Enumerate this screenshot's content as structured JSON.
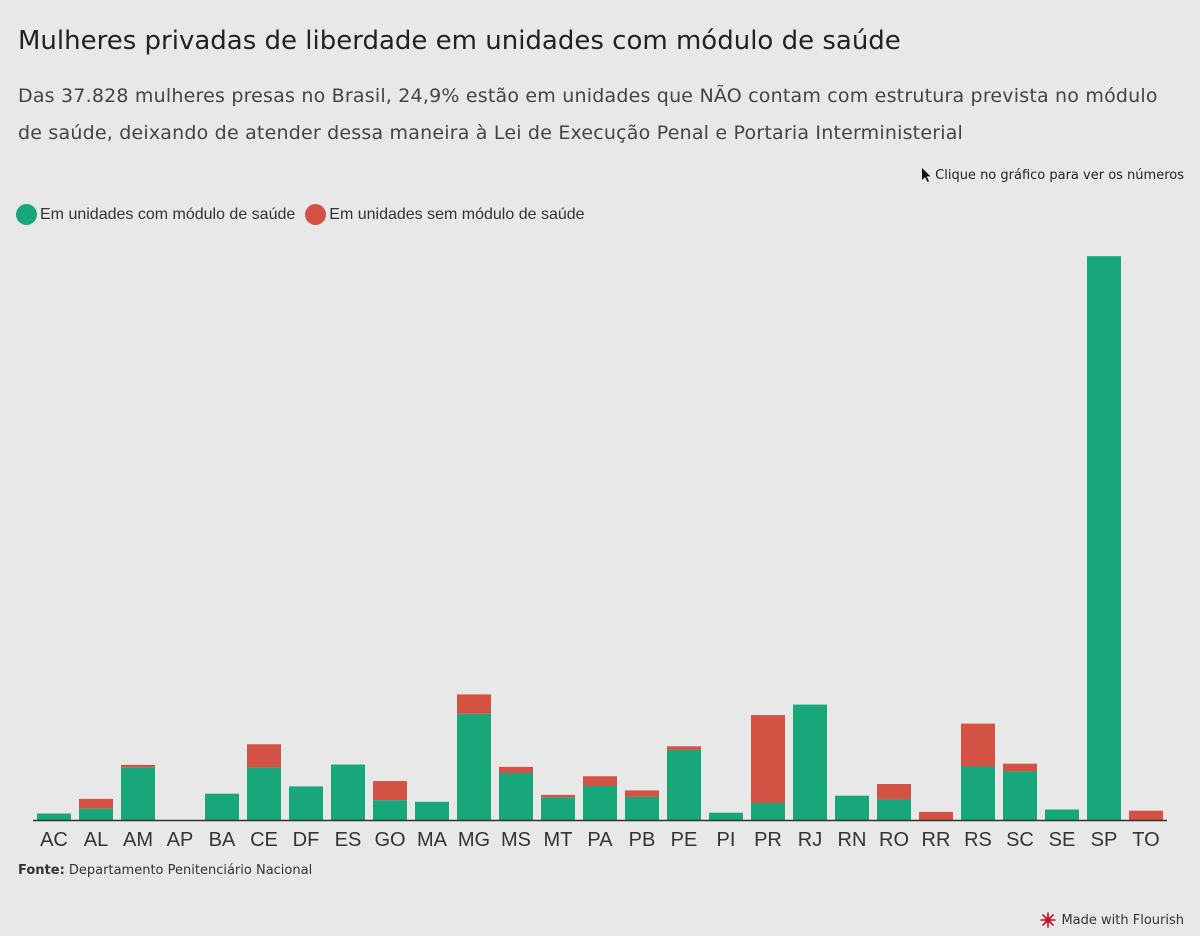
{
  "header": {
    "title": "Mulheres privadas de liberdade em unidades com módulo de saúde",
    "subtitle": "Das 37.828 mulheres presas no Brasil, 24,9% estão em unidades que NÃO contam com estrutura prevista no módulo de saúde, deixando de atender dessa maneira à Lei de Execução Penal e Portaria Interministerial"
  },
  "hint": {
    "icon": "cursor-arrow-icon",
    "text": "Clique no gráfico para ver os números"
  },
  "legend": [
    {
      "label": "Em unidades com módulo de saúde",
      "color": "#17a77b"
    },
    {
      "label": "Em unidades sem módulo de saúde",
      "color": "#d35243"
    }
  ],
  "chart_data": {
    "type": "bar",
    "stacked": true,
    "title": "Mulheres privadas de liberdade em unidades com módulo de saúde",
    "xlabel": "",
    "ylabel": "",
    "ylim": [
      0,
      14000
    ],
    "grid": false,
    "categories": [
      "AC",
      "AL",
      "AM",
      "AP",
      "BA",
      "CE",
      "DF",
      "ES",
      "GO",
      "MA",
      "MG",
      "MS",
      "MT",
      "PA",
      "PB",
      "PE",
      "PI",
      "PR",
      "RJ",
      "RN",
      "RO",
      "RR",
      "RS",
      "SC",
      "SE",
      "SP",
      "TO"
    ],
    "series": [
      {
        "name": "Em unidades com módulo de saúde",
        "color": "#17a77b",
        "values": [
          160,
          280,
          1300,
          0,
          650,
          1300,
          830,
          1370,
          490,
          450,
          2620,
          1160,
          560,
          840,
          570,
          1730,
          180,
          420,
          2850,
          600,
          510,
          0,
          1320,
          1200,
          260,
          13920,
          0
        ]
      },
      {
        "name": "Em unidades sem módulo de saúde",
        "color": "#d35243",
        "values": [
          0,
          240,
          60,
          0,
          0,
          570,
          0,
          0,
          470,
          0,
          480,
          150,
          60,
          240,
          160,
          90,
          0,
          2170,
          0,
          0,
          380,
          200,
          1060,
          190,
          0,
          0,
          230
        ]
      }
    ]
  },
  "footer": {
    "source_label": "Fonte:",
    "source_text": "Departamento Penitenciário Nacional",
    "credit_icon": "flourish-logo-icon",
    "credit_text": "Made with Flourish"
  }
}
